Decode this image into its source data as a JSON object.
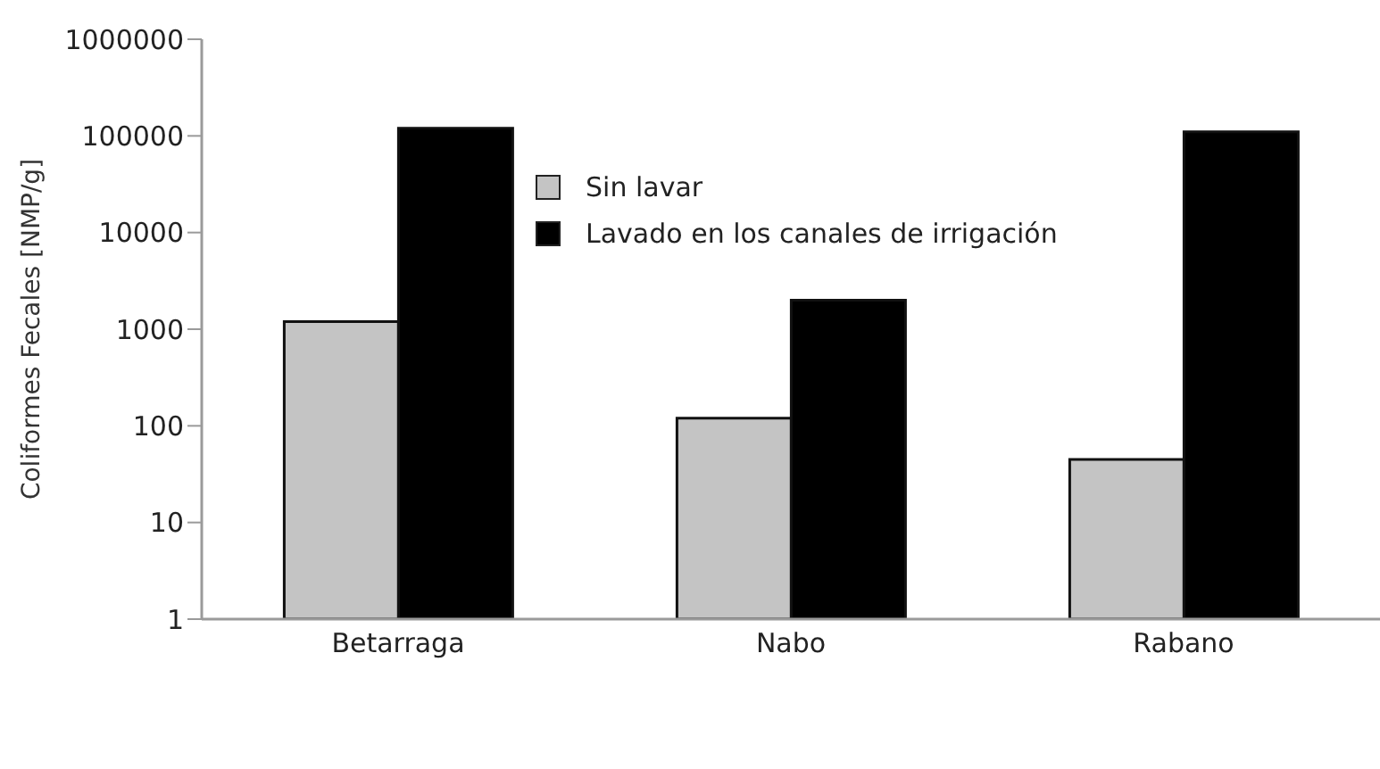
{
  "chart_data": {
    "type": "bar",
    "ylabel": "Coliformes Fecales [NMP/g]",
    "categories": [
      "Betarraga",
      "Nabo",
      "Rabano"
    ],
    "series": [
      {
        "name": "Sin lavar",
        "color": "#c4c4c4",
        "values": [
          1200,
          120,
          45
        ]
      },
      {
        "name": "Lavado en los canales de irrigación",
        "color": "#000000",
        "values": [
          120000,
          2000,
          110000
        ]
      }
    ],
    "log": true,
    "ylim": [
      1,
      1000000
    ],
    "yticks": [
      1,
      10,
      100,
      1000,
      10000,
      100000,
      1000000
    ],
    "legend": "top"
  }
}
